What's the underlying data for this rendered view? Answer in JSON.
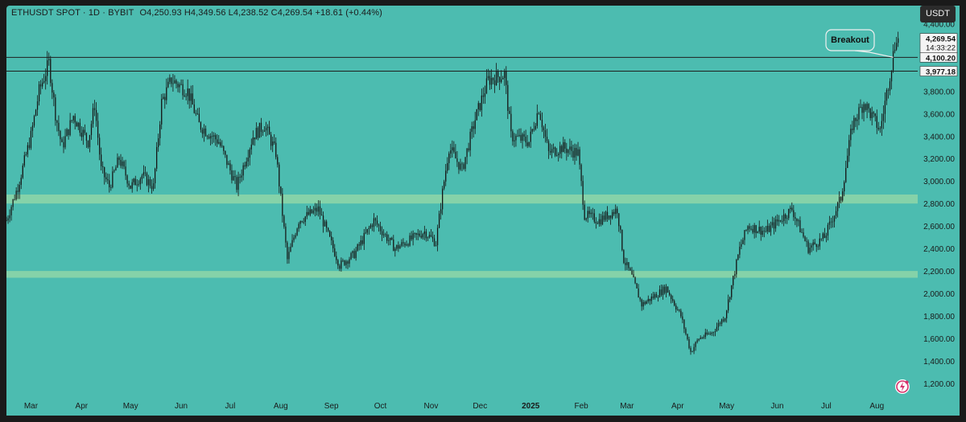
{
  "header": {
    "symbol": "ETHUSDT SPOT",
    "interval": "1D",
    "exchange": "BYBIT",
    "ohlc_text": "O4,250.93  H4,349.56  L4,238.52  C4,269.54  +18.61 (+0.44%)",
    "separator": "·"
  },
  "currency_button": {
    "label": "USDT"
  },
  "annotation": {
    "label": "Breakout"
  },
  "logo": {
    "icon": "lightning-badge-icon"
  },
  "chart_data": {
    "type": "candlestick",
    "title": "ETHUSDT SPOT · 1D · BYBIT",
    "ylim": [
      1100,
      4560
    ],
    "y_ticks": [
      1200,
      1400,
      1600,
      1800,
      2000,
      2200,
      2400,
      2600,
      2800,
      3000,
      3200,
      3400,
      3600,
      3800,
      4000,
      4200,
      4400
    ],
    "y_tick_labels": [
      "1,200.00",
      "1,400.00",
      "1,600.00",
      "1,800.00",
      "2,000.00",
      "2,200.00",
      "2,400.00",
      "2,600.00",
      "2,800.00",
      "3,000.00",
      "3,200.00",
      "3,400.00",
      "3,600.00",
      "3,800.00",
      "4,000.00",
      "4,200.00",
      "4,400.00"
    ],
    "x_start": "2024-02-15",
    "x_end": "2025-08-26",
    "x_labels": [
      {
        "date": "2024-03-01",
        "label": "Mar"
      },
      {
        "date": "2024-04-01",
        "label": "Apr"
      },
      {
        "date": "2024-05-01",
        "label": "May"
      },
      {
        "date": "2024-06-01",
        "label": "Jun"
      },
      {
        "date": "2024-07-01",
        "label": "Jul"
      },
      {
        "date": "2024-08-01",
        "label": "Aug"
      },
      {
        "date": "2024-09-01",
        "label": "Sep"
      },
      {
        "date": "2024-10-01",
        "label": "Oct"
      },
      {
        "date": "2024-11-01",
        "label": "Nov"
      },
      {
        "date": "2024-12-01",
        "label": "Dec"
      },
      {
        "date": "2025-01-01",
        "label": "2025"
      },
      {
        "date": "2025-02-01",
        "label": "Feb"
      },
      {
        "date": "2025-03-01",
        "label": "Mar"
      },
      {
        "date": "2025-04-01",
        "label": "Apr"
      },
      {
        "date": "2025-05-01",
        "label": "May"
      },
      {
        "date": "2025-06-01",
        "label": "Jun"
      },
      {
        "date": "2025-07-01",
        "label": "Jul"
      },
      {
        "date": "2025-08-01",
        "label": "Aug"
      }
    ],
    "price_path": [
      {
        "date": "2024-02-15",
        "price": 2650
      },
      {
        "date": "2024-02-22",
        "price": 2950
      },
      {
        "date": "2024-03-01",
        "price": 3400
      },
      {
        "date": "2024-03-06",
        "price": 3800
      },
      {
        "date": "2024-03-12",
        "price": 4050
      },
      {
        "date": "2024-03-16",
        "price": 3600
      },
      {
        "date": "2024-03-20",
        "price": 3300
      },
      {
        "date": "2024-03-27",
        "price": 3580
      },
      {
        "date": "2024-04-05",
        "price": 3350
      },
      {
        "date": "2024-04-09",
        "price": 3680
      },
      {
        "date": "2024-04-13",
        "price": 3100
      },
      {
        "date": "2024-04-18",
        "price": 2950
      },
      {
        "date": "2024-04-24",
        "price": 3200
      },
      {
        "date": "2024-05-01",
        "price": 2950
      },
      {
        "date": "2024-05-08",
        "price": 3050
      },
      {
        "date": "2024-05-15",
        "price": 2950
      },
      {
        "date": "2024-05-20",
        "price": 3700
      },
      {
        "date": "2024-05-26",
        "price": 3900
      },
      {
        "date": "2024-06-05",
        "price": 3800
      },
      {
        "date": "2024-06-12",
        "price": 3500
      },
      {
        "date": "2024-06-24",
        "price": 3350
      },
      {
        "date": "2024-07-05",
        "price": 2950
      },
      {
        "date": "2024-07-15",
        "price": 3400
      },
      {
        "date": "2024-07-22",
        "price": 3500
      },
      {
        "date": "2024-07-29",
        "price": 3250
      },
      {
        "date": "2024-08-05",
        "price": 2300
      },
      {
        "date": "2024-08-12",
        "price": 2650
      },
      {
        "date": "2024-08-24",
        "price": 2750
      },
      {
        "date": "2024-09-06",
        "price": 2250
      },
      {
        "date": "2024-09-15",
        "price": 2350
      },
      {
        "date": "2024-09-27",
        "price": 2650
      },
      {
        "date": "2024-10-10",
        "price": 2400
      },
      {
        "date": "2024-10-28",
        "price": 2550
      },
      {
        "date": "2024-11-04",
        "price": 2450
      },
      {
        "date": "2024-11-08",
        "price": 2900
      },
      {
        "date": "2024-11-12",
        "price": 3300
      },
      {
        "date": "2024-11-20",
        "price": 3100
      },
      {
        "date": "2024-11-28",
        "price": 3550
      },
      {
        "date": "2024-12-06",
        "price": 3900
      },
      {
        "date": "2024-12-16",
        "price": 3950
      },
      {
        "date": "2024-12-20",
        "price": 3400
      },
      {
        "date": "2024-12-31",
        "price": 3350
      },
      {
        "date": "2025-01-06",
        "price": 3650
      },
      {
        "date": "2025-01-12",
        "price": 3250
      },
      {
        "date": "2025-01-20",
        "price": 3300
      },
      {
        "date": "2025-01-30",
        "price": 3250
      },
      {
        "date": "2025-02-03",
        "price": 2700
      },
      {
        "date": "2025-02-12",
        "price": 2650
      },
      {
        "date": "2025-02-23",
        "price": 2750
      },
      {
        "date": "2025-02-27",
        "price": 2300
      },
      {
        "date": "2025-03-04",
        "price": 2150
      },
      {
        "date": "2025-03-10",
        "price": 1900
      },
      {
        "date": "2025-03-25",
        "price": 2050
      },
      {
        "date": "2025-04-03",
        "price": 1800
      },
      {
        "date": "2025-04-09",
        "price": 1480
      },
      {
        "date": "2025-04-14",
        "price": 1600
      },
      {
        "date": "2025-04-22",
        "price": 1650
      },
      {
        "date": "2025-04-30",
        "price": 1800
      },
      {
        "date": "2025-05-09",
        "price": 2400
      },
      {
        "date": "2025-05-14",
        "price": 2600
      },
      {
        "date": "2025-05-25",
        "price": 2550
      },
      {
        "date": "2025-06-10",
        "price": 2750
      },
      {
        "date": "2025-06-20",
        "price": 2400
      },
      {
        "date": "2025-06-30",
        "price": 2500
      },
      {
        "date": "2025-07-10",
        "price": 2850
      },
      {
        "date": "2025-07-17",
        "price": 3500
      },
      {
        "date": "2025-07-24",
        "price": 3700
      },
      {
        "date": "2025-08-03",
        "price": 3450
      },
      {
        "date": "2025-08-09",
        "price": 3950
      },
      {
        "date": "2025-08-13",
        "price": 4300
      },
      {
        "date": "2025-08-14",
        "price": 4270
      }
    ],
    "support_zones": [
      {
        "low": 2800,
        "high": 2880
      },
      {
        "low": 2140,
        "high": 2200
      }
    ],
    "horizontal_lines": [
      {
        "value": 4100.2,
        "label": "4,100.20"
      },
      {
        "value": 3977.18,
        "label": "3,977.18"
      }
    ],
    "last_price": {
      "value": 4269.54,
      "label": "4,269.54",
      "countdown": "14:33:22"
    },
    "annotation_target": {
      "date": "2025-08-11",
      "price": 4100
    },
    "colors": {
      "background": "#4cbcb0",
      "candle": "#141414",
      "zone": "#8fd6a8",
      "line": "#1e1e1e",
      "label_bg": "#f4f4f4",
      "label_text": "#111111"
    }
  }
}
